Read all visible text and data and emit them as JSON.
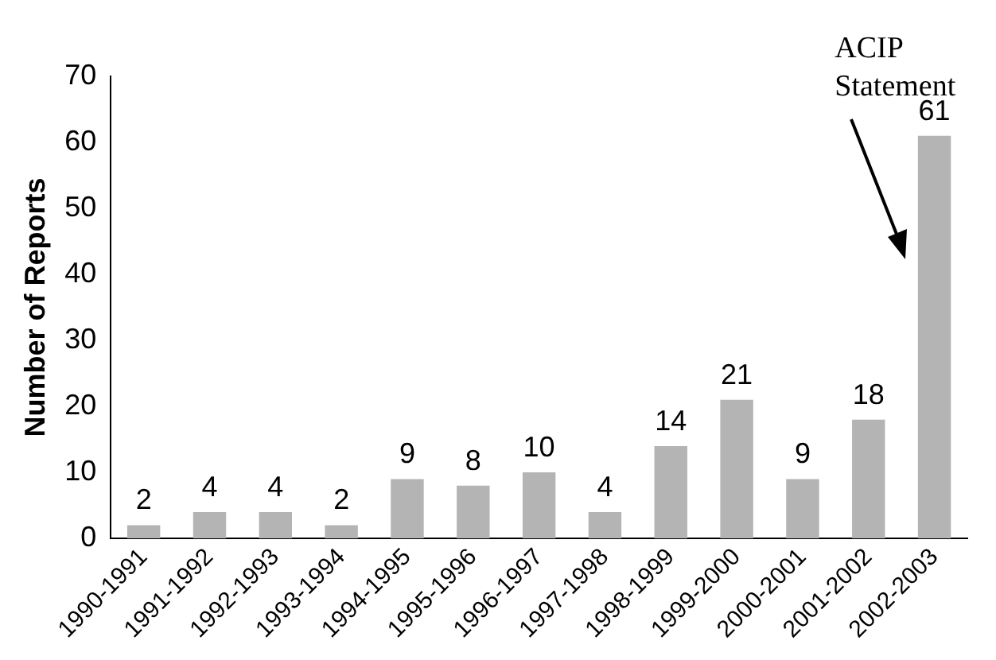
{
  "chart_data": {
    "type": "bar",
    "ylabel": "Number of Reports",
    "categories": [
      "1990-1991",
      "1991-1992",
      "1992-1993",
      "1993-1994",
      "1994-1995",
      "1995-1996",
      "1996-1997",
      "1997-1998",
      "1998-1999",
      "1999-2000",
      "2000-2001",
      "2001-2002",
      "2002-2003"
    ],
    "values": [
      2,
      4,
      4,
      2,
      9,
      8,
      10,
      4,
      14,
      21,
      9,
      18,
      61
    ],
    "color": "#b4b4b4",
    "ylim": [
      0,
      70
    ],
    "yticks": [
      0,
      10,
      20,
      30,
      40,
      50,
      60,
      70
    ],
    "grid": false,
    "legend": false,
    "data_labels": true,
    "annotations": [
      "ACIP Statement"
    ]
  }
}
